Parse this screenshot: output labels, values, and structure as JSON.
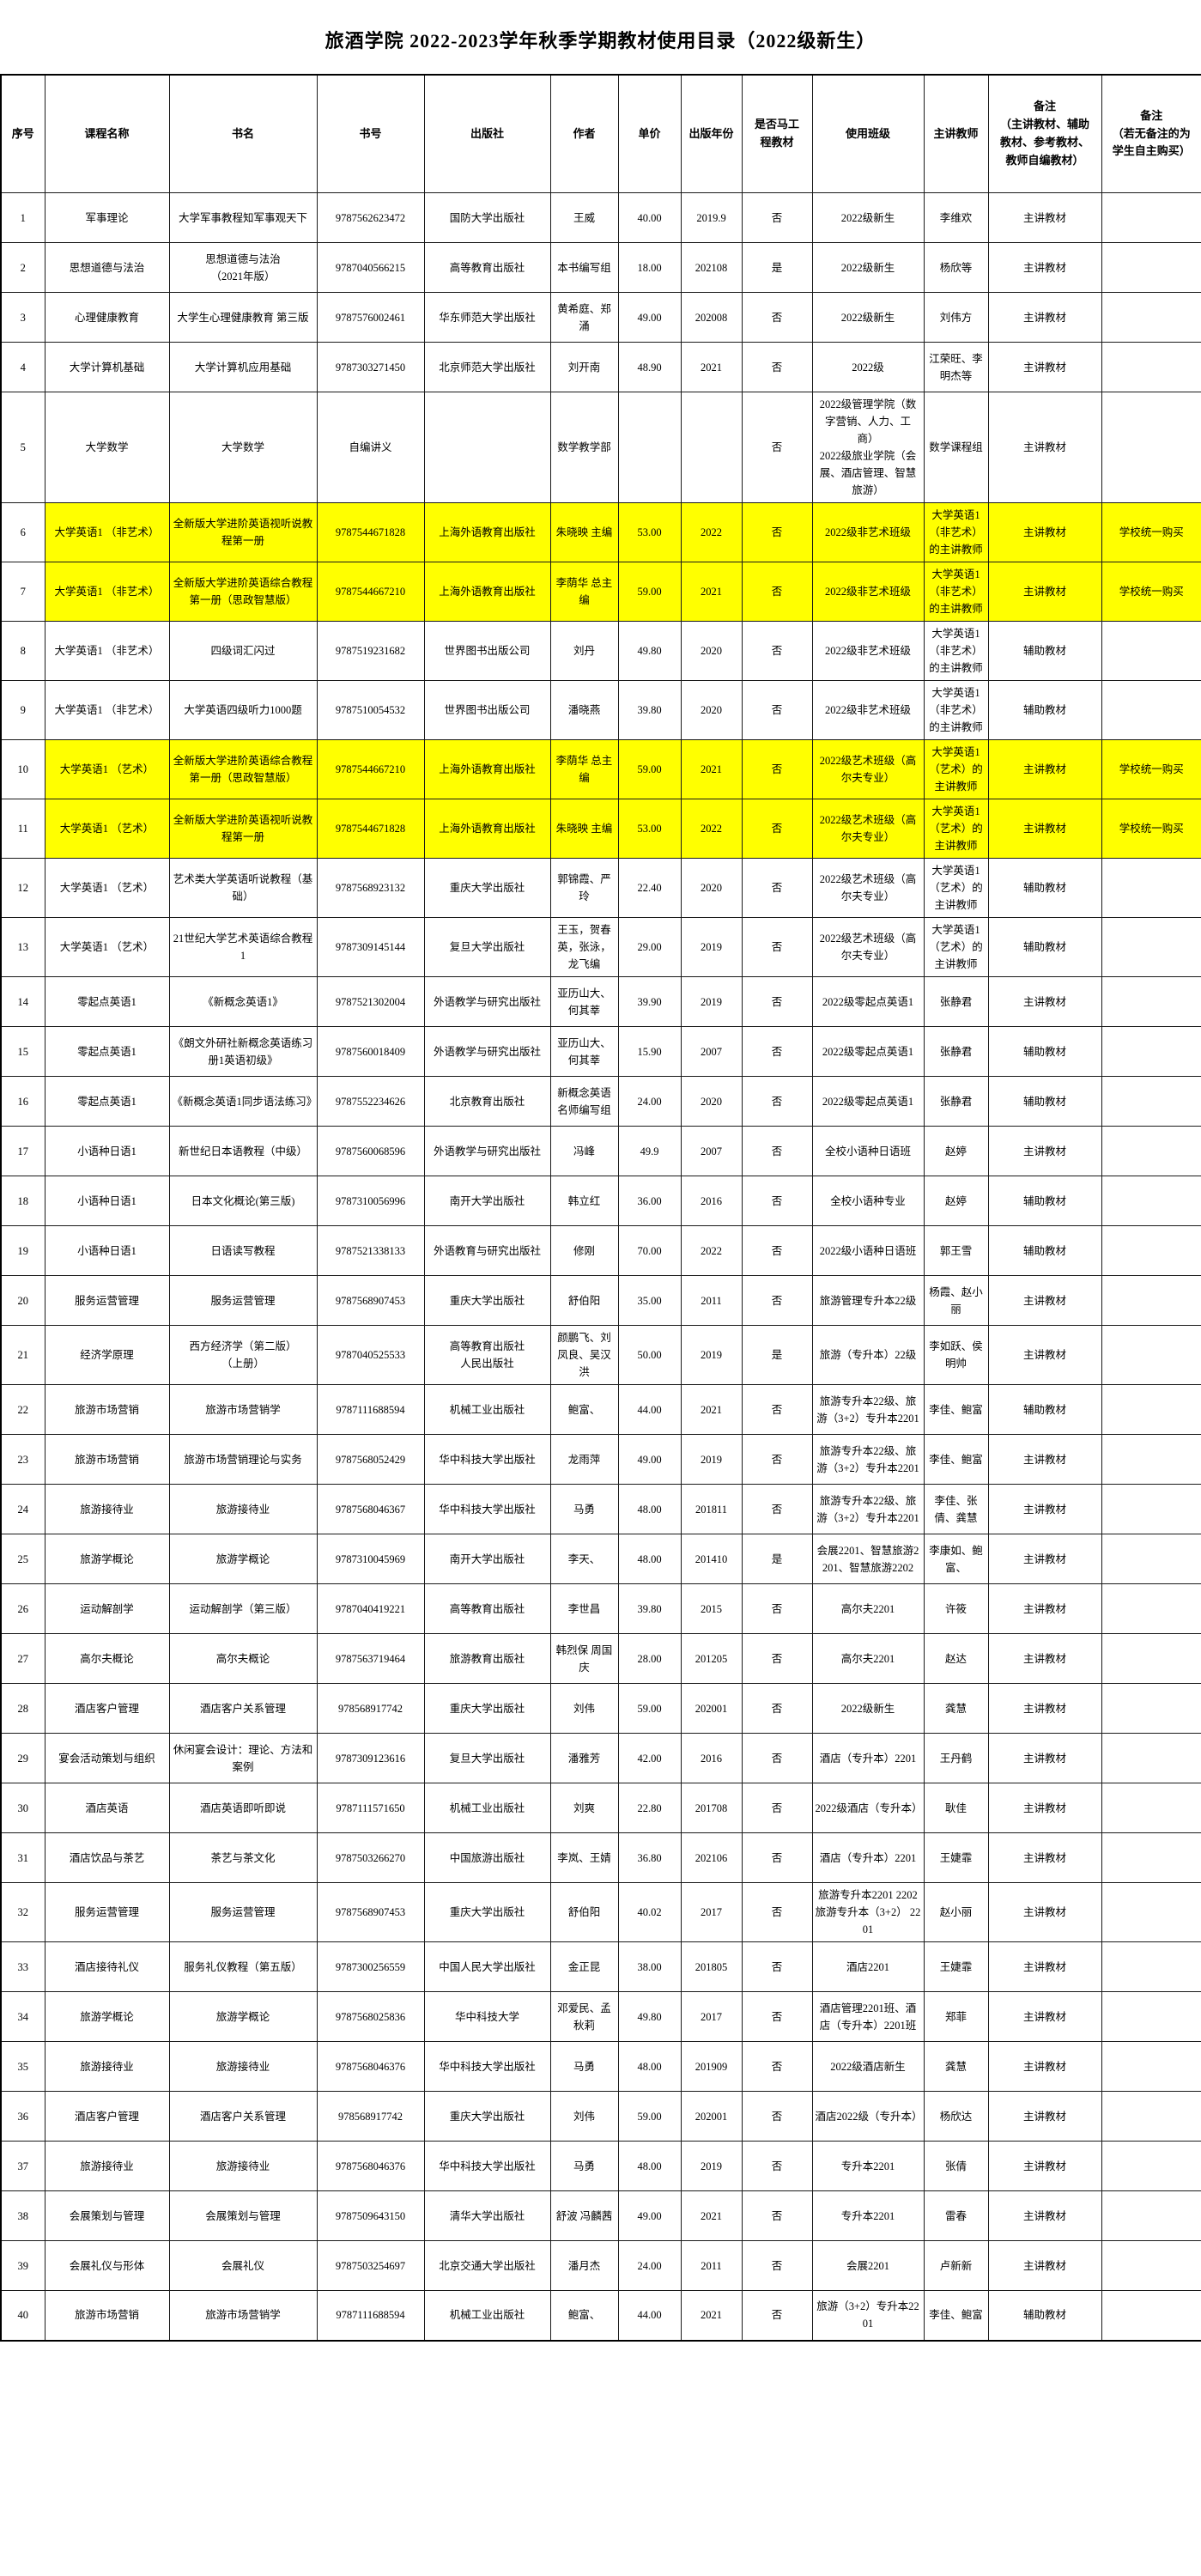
{
  "title": "旅酒学院 2022-2023学年秋季学期教材使用目录（2022级新生）",
  "table": {
    "columns": [
      "序号",
      "课程名称",
      "书名",
      "书号",
      "出版社",
      "作者",
      "单价",
      "出版年份",
      "是否马工\n程教材",
      "使用班级",
      "主讲教师",
      "备注\n（主讲教材、辅助\n教材、参考教材、\n教师自编教材）",
      "备注\n（若无备注的为\n学生自主购买）"
    ],
    "highlight_color": "#ffff00",
    "rows": [
      {
        "no": "1",
        "course": "军事理论",
        "book": "大学军事教程知军事观天下",
        "isbn": "9787562623472",
        "publisher": "国防大学出版社",
        "author": "王威",
        "price": "40.00",
        "year": "2019.9",
        "ma_project": "否",
        "classes": "2022级新生",
        "teacher": "李维欢",
        "note1": "主讲教材",
        "note2": "",
        "highlight": false
      },
      {
        "no": "2",
        "course": "思想道德与法治",
        "book": "思想道德与法治\n（2021年版）",
        "isbn": "9787040566215",
        "publisher": "高等教育出版社",
        "author": "本书编写组",
        "price": "18.00",
        "year": "202108",
        "ma_project": "是",
        "classes": "2022级新生",
        "teacher": "杨欣等",
        "note1": "主讲教材",
        "note2": "",
        "highlight": false
      },
      {
        "no": "3",
        "course": "心理健康教育",
        "book": "大学生心理健康教育 第三版",
        "isbn": "9787576002461",
        "publisher": "华东师范大学出版社",
        "author": "黄希庭、郑涌",
        "price": "49.00",
        "year": "202008",
        "ma_project": "否",
        "classes": "2022级新生",
        "teacher": "刘伟方",
        "note1": "主讲教材",
        "note2": "",
        "highlight": false
      },
      {
        "no": "4",
        "course": "大学计算机基础",
        "book": "大学计算机应用基础",
        "isbn": "9787303271450",
        "publisher": "北京师范大学出版社",
        "author": "刘开南",
        "price": "48.90",
        "year": "2021",
        "ma_project": "否",
        "classes": "2022级",
        "teacher": "江荣旺、李明杰等",
        "note1": "主讲教材",
        "note2": "",
        "highlight": false
      },
      {
        "no": "5",
        "course": "大学数学",
        "book": "大学数学",
        "isbn": "自编讲义",
        "publisher": "",
        "author": "数学教学部",
        "price": "",
        "year": "",
        "ma_project": "否",
        "classes": "2022级管理学院（数字营销、人力、工商）\n2022级旅业学院（会展、酒店管理、智慧旅游）",
        "teacher": "数学课程组",
        "note1": "主讲教材",
        "note2": "",
        "highlight": false
      },
      {
        "no": "6",
        "course": "大学英语1 （非艺术）",
        "book": "全新版大学进阶英语视听说教程第一册",
        "isbn": "9787544671828",
        "publisher": "上海外语教育出版社",
        "author": "朱晓映 主编",
        "price": "53.00",
        "year": "2022",
        "ma_project": "否",
        "classes": "2022级非艺术班级",
        "teacher": "大学英语1（非艺术）的主讲教师",
        "note1": "主讲教材",
        "note2": "学校统一购买",
        "highlight": true
      },
      {
        "no": "7",
        "course": "大学英语1 （非艺术）",
        "book": "全新版大学进阶英语综合教程第一册（思政智慧版）",
        "isbn": "9787544667210",
        "publisher": "上海外语教育出版社",
        "author": "李荫华 总主编",
        "price": "59.00",
        "year": "2021",
        "ma_project": "否",
        "classes": "2022级非艺术班级",
        "teacher": "大学英语1（非艺术）的主讲教师",
        "note1": "主讲教材",
        "note2": "学校统一购买",
        "highlight": true
      },
      {
        "no": "8",
        "course": "大学英语1 （非艺术）",
        "book": "四级词汇闪过",
        "isbn": "9787519231682",
        "publisher": "世界图书出版公司",
        "author": "刘丹",
        "price": "49.80",
        "year": "2020",
        "ma_project": "否",
        "classes": "2022级非艺术班级",
        "teacher": "大学英语1（非艺术）的主讲教师",
        "note1": "辅助教材",
        "note2": "",
        "highlight": false
      },
      {
        "no": "9",
        "course": "大学英语1 （非艺术）",
        "book": "大学英语四级听力1000题",
        "isbn": "9787510054532",
        "publisher": "世界图书出版公司",
        "author": "潘晓燕",
        "price": "39.80",
        "year": "2020",
        "ma_project": "否",
        "classes": "2022级非艺术班级",
        "teacher": "大学英语1（非艺术）的主讲教师",
        "note1": "辅助教材",
        "note2": "",
        "highlight": false
      },
      {
        "no": "10",
        "course": "大学英语1 （艺术）",
        "book": "全新版大学进阶英语综合教程第一册（思政智慧版）",
        "isbn": "9787544667210",
        "publisher": "上海外语教育出版社",
        "author": "李荫华 总主编",
        "price": "59.00",
        "year": "2021",
        "ma_project": "否",
        "classes": "2022级艺术班级（高尔夫专业）",
        "teacher": "大学英语1（艺术）的主讲教师",
        "note1": "主讲教材",
        "note2": "学校统一购买",
        "highlight": true
      },
      {
        "no": "11",
        "course": "大学英语1 （艺术）",
        "book": "全新版大学进阶英语视听说教程第一册",
        "isbn": "9787544671828",
        "publisher": "上海外语教育出版社",
        "author": "朱晓映 主编",
        "price": "53.00",
        "year": "2022",
        "ma_project": "否",
        "classes": "2022级艺术班级（高尔夫专业）",
        "teacher": "大学英语1（艺术）的主讲教师",
        "note1": "主讲教材",
        "note2": "学校统一购买",
        "highlight": true
      },
      {
        "no": "12",
        "course": "大学英语1 （艺术）",
        "book": "艺术类大学英语听说教程（基础）",
        "isbn": "9787568923132",
        "publisher": "重庆大学出版社",
        "author": "郭锦霞、严玲",
        "price": "22.40",
        "year": "2020",
        "ma_project": "否",
        "classes": "2022级艺术班级（高尔夫专业）",
        "teacher": "大学英语1（艺术）的主讲教师",
        "note1": "辅助教材",
        "note2": "",
        "highlight": false
      },
      {
        "no": "13",
        "course": "大学英语1 （艺术）",
        "book": "21世纪大学艺术英语综合教程1",
        "isbn": "9787309145144",
        "publisher": "复旦大学出版社",
        "author": "王玉，贺春英，张泳，龙飞编",
        "price": "29.00",
        "year": "2019",
        "ma_project": "否",
        "classes": "2022级艺术班级（高尔夫专业）",
        "teacher": "大学英语1（艺术）的主讲教师",
        "note1": "辅助教材",
        "note2": "",
        "highlight": false
      },
      {
        "no": "14",
        "course": "零起点英语1",
        "book": "《新概念英语1》",
        "isbn": "9787521302004",
        "publisher": "外语教学与研究出版社",
        "author": "亚历山大、何其莘",
        "price": "39.90",
        "year": "2019",
        "ma_project": "否",
        "classes": "2022级零起点英语1",
        "teacher": "张静君",
        "note1": "主讲教材",
        "note2": "",
        "highlight": false
      },
      {
        "no": "15",
        "course": "零起点英语1",
        "book": "《朗文外研社新概念英语练习册1英语初级》",
        "isbn": "9787560018409",
        "publisher": "外语教学与研究出版社",
        "author": "亚历山大、何其莘",
        "price": "15.90",
        "year": "2007",
        "ma_project": "否",
        "classes": "2022级零起点英语1",
        "teacher": "张静君",
        "note1": "辅助教材",
        "note2": "",
        "highlight": false
      },
      {
        "no": "16",
        "course": "零起点英语1",
        "book": "《新概念英语1同步语法练习》",
        "isbn": "9787552234626",
        "publisher": "北京教育出版社",
        "author": "新概念英语名师编写组",
        "price": "24.00",
        "year": "2020",
        "ma_project": "否",
        "classes": "2022级零起点英语1",
        "teacher": "张静君",
        "note1": "辅助教材",
        "note2": "",
        "highlight": false
      },
      {
        "no": "17",
        "course": "小语种日语1",
        "book": "新世纪日本语教程（中级）",
        "isbn": "9787560068596",
        "publisher": "外语教学与研究出版社",
        "author": "冯峰",
        "price": "49.9",
        "year": "2007",
        "ma_project": "否",
        "classes": "全校小语种日语班",
        "teacher": "赵婷",
        "note1": "主讲教材",
        "note2": "",
        "highlight": false
      },
      {
        "no": "18",
        "course": "小语种日语1",
        "book": "日本文化概论(第三版)",
        "isbn": "9787310056996",
        "publisher": "南开大学出版社",
        "author": "韩立红",
        "price": "36.00",
        "year": "2016",
        "ma_project": "否",
        "classes": "全校小语种专业",
        "teacher": "赵婷",
        "note1": "辅助教材",
        "note2": "",
        "highlight": false
      },
      {
        "no": "19",
        "course": "小语种日语1",
        "book": "日语读写教程",
        "isbn": "9787521338133",
        "publisher": "外语教育与研究出版社",
        "author": "修刚",
        "price": "70.00",
        "year": "2022",
        "ma_project": "否",
        "classes": "2022级小语种日语班",
        "teacher": "郭王雪",
        "note1": "辅助教材",
        "note2": "",
        "highlight": false
      },
      {
        "no": "20",
        "course": "服务运营管理",
        "book": "服务运营管理",
        "isbn": "9787568907453",
        "publisher": "重庆大学出版社",
        "author": "舒伯阳",
        "price": "35.00",
        "year": "2011",
        "ma_project": "否",
        "classes": "旅游管理专升本22级",
        "teacher": "杨霞、赵小丽",
        "note1": "主讲教材",
        "note2": "",
        "highlight": false
      },
      {
        "no": "21",
        "course": "经济学原理",
        "book": "西方经济学（第二版）\n（上册）",
        "isbn": "9787040525533",
        "publisher": "高等教育出版社\n人民出版社",
        "author": "颜鹏飞、刘凤良、吴汉洪",
        "price": "50.00",
        "year": "2019",
        "ma_project": "是",
        "classes": "旅游（专升本）22级",
        "teacher": "李如跃、侯明帅",
        "note1": "主讲教材",
        "note2": "",
        "highlight": false
      },
      {
        "no": "22",
        "course": "旅游市场营销",
        "book": "旅游市场营销学",
        "isbn": "9787111688594",
        "publisher": "机械工业出版社",
        "author": "鲍富、",
        "price": "44.00",
        "year": "2021",
        "ma_project": "否",
        "classes": "旅游专升本22级、旅游（3+2）专升本2201",
        "teacher": "李佳、鲍富",
        "note1": "辅助教材",
        "note2": "",
        "highlight": false
      },
      {
        "no": "23",
        "course": "旅游市场营销",
        "book": "旅游市场营销理论与实务",
        "isbn": "9787568052429",
        "publisher": "华中科技大学出版社",
        "author": "龙雨萍",
        "price": "49.00",
        "year": "2019",
        "ma_project": "否",
        "classes": "旅游专升本22级、旅游（3+2）专升本2201",
        "teacher": "李佳、鲍富",
        "note1": "主讲教材",
        "note2": "",
        "highlight": false
      },
      {
        "no": "24",
        "course": "旅游接待业",
        "book": "旅游接待业",
        "isbn": "9787568046367",
        "publisher": "华中科技大学出版社",
        "author": "马勇",
        "price": "48.00",
        "year": "201811",
        "ma_project": "否",
        "classes": "旅游专升本22级、旅游（3+2）专升本2201",
        "teacher": "李佳、张倩、龚慧",
        "note1": "主讲教材",
        "note2": "",
        "highlight": false
      },
      {
        "no": "25",
        "course": "旅游学概论",
        "book": "旅游学概论",
        "isbn": "9787310045969",
        "publisher": "南开大学出版社",
        "author": "李天、",
        "price": "48.00",
        "year": "201410",
        "ma_project": "是",
        "classes": "会展2201、智慧旅游2201、智慧旅游2202",
        "teacher": "李康如、鲍富、",
        "note1": "主讲教材",
        "note2": "",
        "highlight": false
      },
      {
        "no": "26",
        "course": "运动解剖学",
        "book": "运动解剖学（第三版）",
        "isbn": "9787040419221",
        "publisher": "高等教育出版社",
        "author": "李世昌",
        "price": "39.80",
        "year": "2015",
        "ma_project": "否",
        "classes": "高尔夫2201",
        "teacher": "许筱",
        "note1": "主讲教材",
        "note2": "",
        "highlight": false
      },
      {
        "no": "27",
        "course": "高尔夫概论",
        "book": "高尔夫概论",
        "isbn": "9787563719464",
        "publisher": "旅游教育出版社",
        "author": "韩烈保 周国庆",
        "price": "28.00",
        "year": "201205",
        "ma_project": "否",
        "classes": "高尔夫2201",
        "teacher": "赵达",
        "note1": "主讲教材",
        "note2": "",
        "highlight": false
      },
      {
        "no": "28",
        "course": "酒店客户管理",
        "book": "酒店客户关系管理",
        "isbn": "978568917742",
        "publisher": "重庆大学出版社",
        "author": "刘伟",
        "price": "59.00",
        "year": "202001",
        "ma_project": "否",
        "classes": "2022级新生",
        "teacher": "龚慧",
        "note1": "主讲教材",
        "note2": "",
        "highlight": false
      },
      {
        "no": "29",
        "course": "宴会活动策划与组织",
        "book": "休闲宴会设计：理论、方法和案例",
        "isbn": "9787309123616",
        "publisher": "复旦大学出版社",
        "author": "潘雅芳",
        "price": "42.00",
        "year": "2016",
        "ma_project": "否",
        "classes": "酒店（专升本）2201",
        "teacher": "王丹鹤",
        "note1": "主讲教材",
        "note2": "",
        "highlight": false
      },
      {
        "no": "30",
        "course": "酒店英语",
        "book": "酒店英语即听即说",
        "isbn": "9787111571650",
        "publisher": "机械工业出版社",
        "author": "刘爽",
        "price": "22.80",
        "year": "201708",
        "ma_project": "否",
        "classes": "2022级酒店（专升本）",
        "teacher": "耿佳",
        "note1": "主讲教材",
        "note2": "",
        "highlight": false
      },
      {
        "no": "31",
        "course": "酒店饮品与茶艺",
        "book": "茶艺与茶文化",
        "isbn": "9787503266270",
        "publisher": "中国旅游出版社",
        "author": "李岚、王婧",
        "price": "36.80",
        "year": "202106",
        "ma_project": "否",
        "classes": "酒店（专升本）2201",
        "teacher": "王婕霏",
        "note1": "主讲教材",
        "note2": "",
        "highlight": false
      },
      {
        "no": "32",
        "course": "服务运营管理",
        "book": "服务运营管理",
        "isbn": "9787568907453",
        "publisher": "重庆大学出版社",
        "author": "舒伯阳",
        "price": "40.02",
        "year": "2017",
        "ma_project": "否",
        "classes": "旅游专升本2201 2202 旅游专升本（3+2） 2201",
        "teacher": "赵小丽",
        "note1": "主讲教材",
        "note2": "",
        "highlight": false
      },
      {
        "no": "33",
        "course": "酒店接待礼仪",
        "book": "服务礼仪教程（第五版）",
        "isbn": "9787300256559",
        "publisher": "中国人民大学出版社",
        "author": "金正昆",
        "price": "38.00",
        "year": "201805",
        "ma_project": "否",
        "classes": "酒店2201",
        "teacher": "王婕霏",
        "note1": "主讲教材",
        "note2": "",
        "highlight": false
      },
      {
        "no": "34",
        "course": "旅游学概论",
        "book": "旅游学概论",
        "isbn": "9787568025836",
        "publisher": "华中科技大学",
        "author": "邓爱民、孟秋莉",
        "price": "49.80",
        "year": "2017",
        "ma_project": "否",
        "classes": "酒店管理2201班、酒店（专升本）2201班",
        "teacher": "郑菲",
        "note1": "主讲教材",
        "note2": "",
        "highlight": false
      },
      {
        "no": "35",
        "course": "旅游接待业",
        "book": "旅游接待业",
        "isbn": "9787568046376",
        "publisher": "华中科技大学出版社",
        "author": "马勇",
        "price": "48.00",
        "year": "201909",
        "ma_project": "否",
        "classes": "2022级酒店新生",
        "teacher": "龚慧",
        "note1": "主讲教材",
        "note2": "",
        "highlight": false
      },
      {
        "no": "36",
        "course": "酒店客户管理",
        "book": "酒店客户关系管理",
        "isbn": "978568917742",
        "publisher": "重庆大学出版社",
        "author": "刘伟",
        "price": "59.00",
        "year": "202001",
        "ma_project": "否",
        "classes": "酒店2022级（专升本）",
        "teacher": "杨欣达",
        "note1": "主讲教材",
        "note2": "",
        "highlight": false
      },
      {
        "no": "37",
        "course": "旅游接待业",
        "book": "旅游接待业",
        "isbn": "9787568046376",
        "publisher": "华中科技大学出版社",
        "author": "马勇",
        "price": "48.00",
        "year": "2019",
        "ma_project": "否",
        "classes": "专升本2201",
        "teacher": "张倩",
        "note1": "主讲教材",
        "note2": "",
        "highlight": false
      },
      {
        "no": "38",
        "course": "会展策划与管理",
        "book": "会展策划与管理",
        "isbn": "9787509643150",
        "publisher": "清华大学出版社",
        "author": "舒波 冯麟茜",
        "price": "49.00",
        "year": "2021",
        "ma_project": "否",
        "classes": "专升本2201",
        "teacher": "雷春",
        "note1": "主讲教材",
        "note2": "",
        "highlight": false
      },
      {
        "no": "39",
        "course": "会展礼仪与形体",
        "book": "会展礼仪",
        "isbn": "9787503254697",
        "publisher": "北京交通大学出版社",
        "author": "潘月杰",
        "price": "24.00",
        "year": "2011",
        "ma_project": "否",
        "classes": "会展2201",
        "teacher": "卢新新",
        "note1": "主讲教材",
        "note2": "",
        "highlight": false
      },
      {
        "no": "40",
        "course": "旅游市场营销",
        "book": "旅游市场营销学",
        "isbn": "9787111688594",
        "publisher": "机械工业出版社",
        "author": "鲍富、",
        "price": "44.00",
        "year": "2021",
        "ma_project": "否",
        "classes": "旅游（3+2）专升本2201",
        "teacher": "李佳、鲍富",
        "note1": "辅助教材",
        "note2": "",
        "highlight": false
      }
    ]
  }
}
